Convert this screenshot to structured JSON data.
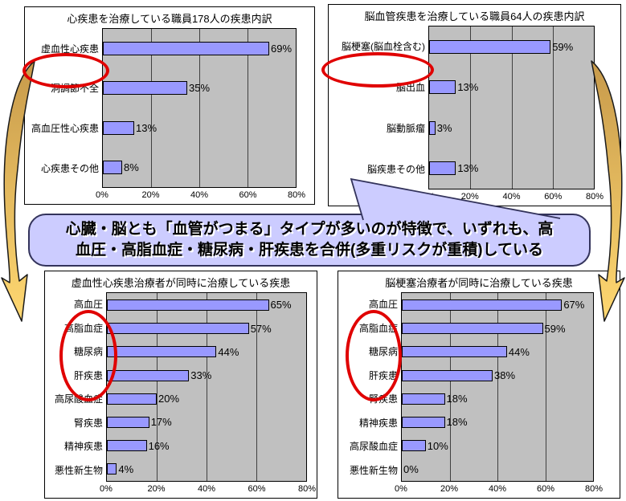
{
  "callout": {
    "line1": "心臓・脳とも「血管がつまる」タイプが多いのが特徴で、いずれも、高",
    "line2": "血圧・高脂血症・糖尿病・肝疾患を合併(多重リスクが重積)している",
    "full_text": "心臓・脳とも「血管がつまる」タイプが多いのが特徴で、いずれも、高血圧・高脂血症・糖尿病・肝疾患を合併(多重リスクが重積)している"
  },
  "colors": {
    "bar_fill": "#9999FF",
    "bar_border": "#000000",
    "plot_background": "#C0C0C0",
    "highlight_circle": "#E00000",
    "callout_background": "#CCCCFF",
    "callout_border": "#33335B",
    "arrow_fill_top": "#C79A4B",
    "arrow_fill_bottom": "#FFD871"
  },
  "chart_data": [
    {
      "type": "bar",
      "orientation": "horizontal",
      "title": "心疾患を治療している職員178人の疾患内訳",
      "categories": [
        "虚血性心疾患",
        "洞調節不全",
        "高血圧性心疾患",
        "心疾患その他"
      ],
      "values": [
        69,
        35,
        13,
        8
      ],
      "value_suffix": "%",
      "xlim": [
        0,
        80
      ],
      "xticks": [
        "0%",
        "20%",
        "40%",
        "60%",
        "80%"
      ],
      "grid": true,
      "highlighted_categories": [
        "虚血性心疾患"
      ]
    },
    {
      "type": "bar",
      "orientation": "horizontal",
      "title": "脳血管疾患を治療している職員64人の疾患内訳",
      "categories": [
        "脳梗塞(脳血栓含む)",
        "脳出血",
        "脳動脈瘤",
        "脳疾患その他"
      ],
      "values": [
        59,
        13,
        3,
        13
      ],
      "value_suffix": "%",
      "xlim": [
        0,
        80
      ],
      "xticks": [
        "0%",
        "20%",
        "40%",
        "60%",
        "80%"
      ],
      "grid": true,
      "highlighted_categories": [
        "脳梗塞(脳血栓含む)"
      ]
    },
    {
      "type": "bar",
      "orientation": "horizontal",
      "title": "虚血性心疾患治療者が同時に治療している疾患",
      "categories": [
        "高血圧",
        "高脂血症",
        "糖尿病",
        "肝疾患",
        "高尿酸血症",
        "腎疾患",
        "精神疾患",
        "悪性新生物"
      ],
      "values": [
        65,
        57,
        44,
        33,
        20,
        17,
        16,
        4
      ],
      "value_suffix": "%",
      "xlim": [
        0,
        80
      ],
      "xticks": [
        "0%",
        "20%",
        "40%",
        "60%",
        "80%"
      ],
      "grid": true,
      "highlighted_categories": [
        "高血圧",
        "高脂血症",
        "糖尿病",
        "肝疾患"
      ]
    },
    {
      "type": "bar",
      "orientation": "horizontal",
      "title": "脳梗塞治療者が同時に治療している疾患",
      "categories": [
        "高血圧",
        "高脂血症",
        "糖尿病",
        "肝疾患",
        "腎疾患",
        "精神疾患",
        "高尿酸血症",
        "悪性新生物"
      ],
      "values": [
        67,
        59,
        44,
        38,
        18,
        18,
        10,
        0
      ],
      "value_suffix": "%",
      "xlim": [
        0,
        80
      ],
      "xticks": [
        "0%",
        "20%",
        "40%",
        "60%",
        "80%"
      ],
      "grid": true,
      "highlighted_categories": [
        "高血圧",
        "高脂血症",
        "糖尿病",
        "肝疾患"
      ]
    }
  ]
}
